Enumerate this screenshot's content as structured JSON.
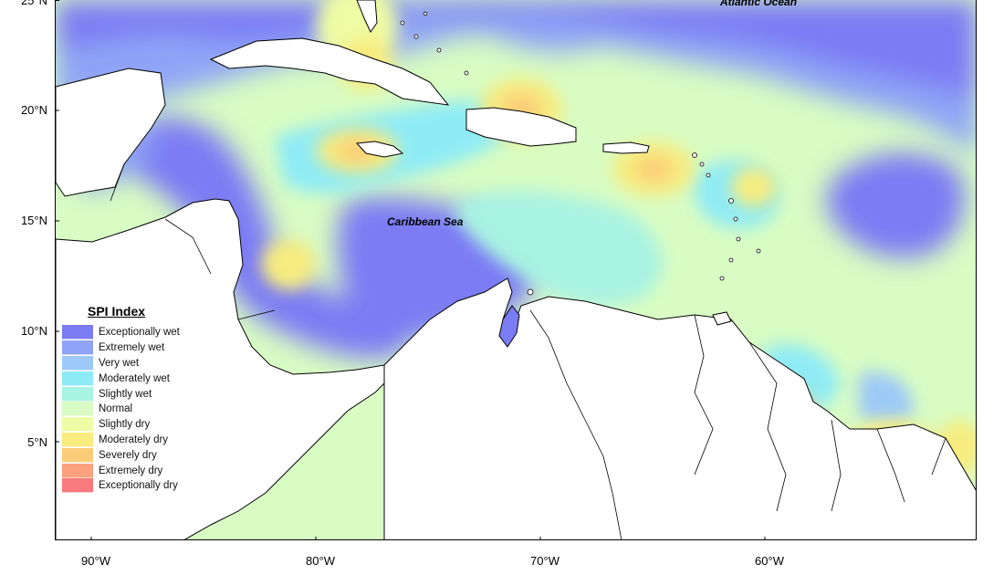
{
  "map": {
    "sea_labels": {
      "caribbean": "Caribbean Sea",
      "atlantic": "Atlantic Ocean"
    },
    "latitude_ticks": [
      "25°N",
      "20°N",
      "15°N",
      "10°N",
      "5°N"
    ],
    "longitude_ticks": [
      "90°W",
      "80°W",
      "70°W",
      "60°W"
    ]
  },
  "legend": {
    "title": "SPI Index",
    "items": [
      {
        "label": "Exceptionally wet",
        "color": "#7b7cf4"
      },
      {
        "label": "Extremely wet",
        "color": "#8fa4f6"
      },
      {
        "label": "Very wet",
        "color": "#9cc9f8"
      },
      {
        "label": "Moderately wet",
        "color": "#8eebf6"
      },
      {
        "label": "Slightly wet",
        "color": "#a9f3e2"
      },
      {
        "label": "Normal",
        "color": "#d8fcc3"
      },
      {
        "label": "Slightly dry",
        "color": "#eefca4"
      },
      {
        "label": "Moderately dry",
        "color": "#f8ec7e"
      },
      {
        "label": "Severely dry",
        "color": "#fbcc78"
      },
      {
        "label": "Extremely dry",
        "color": "#fca17e"
      },
      {
        "label": "Exceptionally dry",
        "color": "#f97a7c"
      }
    ]
  }
}
